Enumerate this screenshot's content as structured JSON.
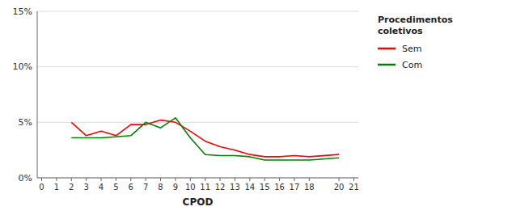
{
  "chart_data": {
    "type": "line",
    "x_label": "CPOD",
    "legend_title": "Procedimentos\ncoletivos",
    "x": [
      2,
      3,
      4,
      5,
      6,
      7,
      8,
      9,
      10,
      11,
      12,
      13,
      14,
      15,
      16,
      17,
      18,
      20
    ],
    "series": [
      {
        "name": "Sem",
        "color": "#ff0000",
        "values": [
          5.0,
          3.8,
          4.2,
          3.8,
          4.8,
          4.8,
          5.2,
          5.0,
          4.2,
          3.3,
          2.8,
          2.5,
          2.1,
          1.9,
          1.9,
          2.0,
          1.9,
          2.1
        ]
      },
      {
        "name": "Com",
        "color": "#008000",
        "values": [
          3.6,
          3.6,
          3.6,
          3.7,
          3.8,
          5.0,
          4.5,
          5.4,
          3.6,
          2.1,
          2.0,
          2.0,
          1.9,
          1.6,
          1.6,
          1.6,
          1.6,
          1.8
        ]
      }
    ],
    "xlim": [
      -0.3,
      21.3
    ],
    "xticks": [
      0,
      1,
      2,
      3,
      4,
      5,
      6,
      7,
      8,
      9,
      10,
      11,
      12,
      13,
      14,
      15,
      16,
      17,
      18,
      20,
      21
    ],
    "ylim": [
      0,
      15
    ],
    "yticks": [
      {
        "value": 0,
        "label": "0%"
      },
      {
        "value": 5,
        "label": "5%"
      },
      {
        "value": 10,
        "label": "10%"
      },
      {
        "value": 15,
        "label": "15%"
      }
    ],
    "grid": true,
    "legend": "right"
  }
}
